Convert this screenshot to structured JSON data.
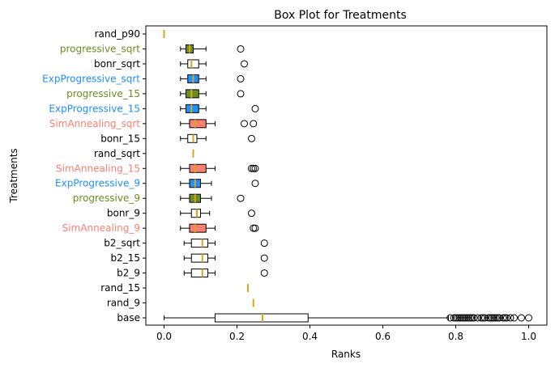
{
  "chart_data": {
    "type": "boxplot",
    "orientation": "horizontal",
    "title": "Box Plot for Treatments",
    "xlabel": "Ranks",
    "ylabel": "Treatments",
    "xlim": [
      -0.05,
      1.05
    ],
    "xticks": [
      0.0,
      0.2,
      0.4,
      0.6,
      0.8,
      1.0
    ],
    "xtick_labels": [
      "0.0",
      "0.2",
      "0.4",
      "0.6",
      "0.8",
      "1.0"
    ],
    "grid": false,
    "legend": "none",
    "colors": {
      "progressive": "#6b8e23",
      "exp": "#1e90ff",
      "sim": "#fa8072",
      "plain": "#ffffff",
      "default_text": "#000000",
      "median": "#daa520"
    },
    "treatments": [
      {
        "label": "rand_p90",
        "color_key": "plain",
        "q1": 0.0,
        "median": 0.0,
        "q3": 0.0,
        "whislo": 0.0,
        "whishi": 0.0,
        "fliers": []
      },
      {
        "label": "progressive_sqrt",
        "color_key": "progressive",
        "q1": 0.06,
        "median": 0.07,
        "q3": 0.08,
        "whislo": 0.045,
        "whishi": 0.115,
        "fliers": [
          0.21
        ]
      },
      {
        "label": "bonr_sqrt",
        "color_key": "plain",
        "q1": 0.065,
        "median": 0.075,
        "q3": 0.095,
        "whislo": 0.045,
        "whishi": 0.115,
        "fliers": [
          0.22
        ]
      },
      {
        "label": "ExpProgressive_sqrt",
        "color_key": "exp",
        "q1": 0.065,
        "median": 0.08,
        "q3": 0.095,
        "whislo": 0.045,
        "whishi": 0.115,
        "fliers": [
          0.21
        ]
      },
      {
        "label": "progressive_15",
        "color_key": "progressive",
        "q1": 0.06,
        "median": 0.075,
        "q3": 0.095,
        "whislo": 0.045,
        "whishi": 0.115,
        "fliers": [
          0.21
        ]
      },
      {
        "label": "ExpProgressive_15",
        "color_key": "exp",
        "q1": 0.06,
        "median": 0.075,
        "q3": 0.095,
        "whislo": 0.045,
        "whishi": 0.115,
        "fliers": [
          0.25
        ]
      },
      {
        "label": "SimAnnealing_sqrt",
        "color_key": "sim",
        "q1": 0.07,
        "median": 0.085,
        "q3": 0.115,
        "whislo": 0.045,
        "whishi": 0.14,
        "fliers": [
          0.22,
          0.245
        ]
      },
      {
        "label": "bonr_15",
        "color_key": "plain",
        "q1": 0.065,
        "median": 0.08,
        "q3": 0.09,
        "whislo": 0.045,
        "whishi": 0.115,
        "fliers": [
          0.24
        ]
      },
      {
        "label": "rand_sqrt",
        "color_key": "plain",
        "q1": 0.08,
        "median": 0.08,
        "q3": 0.08,
        "whislo": 0.08,
        "whishi": 0.08,
        "fliers": []
      },
      {
        "label": "SimAnnealing_15",
        "color_key": "sim",
        "q1": 0.07,
        "median": 0.085,
        "q3": 0.115,
        "whislo": 0.045,
        "whishi": 0.14,
        "fliers": [
          0.24,
          0.245,
          0.25
        ]
      },
      {
        "label": "ExpProgressive_9",
        "color_key": "exp",
        "q1": 0.07,
        "median": 0.085,
        "q3": 0.1,
        "whislo": 0.045,
        "whishi": 0.13,
        "fliers": [
          0.25
        ]
      },
      {
        "label": "progressive_9",
        "color_key": "progressive",
        "q1": 0.07,
        "median": 0.085,
        "q3": 0.1,
        "whislo": 0.045,
        "whishi": 0.13,
        "fliers": [
          0.21
        ]
      },
      {
        "label": "bonr_9",
        "color_key": "plain",
        "q1": 0.075,
        "median": 0.09,
        "q3": 0.1,
        "whislo": 0.045,
        "whishi": 0.125,
        "fliers": [
          0.24
        ]
      },
      {
        "label": "SimAnnealing_9",
        "color_key": "sim",
        "q1": 0.07,
        "median": 0.085,
        "q3": 0.115,
        "whislo": 0.045,
        "whishi": 0.14,
        "fliers": [
          0.245,
          0.25
        ]
      },
      {
        "label": "b2_sqrt",
        "color_key": "plain",
        "q1": 0.075,
        "median": 0.105,
        "q3": 0.12,
        "whislo": 0.055,
        "whishi": 0.14,
        "fliers": [
          0.275
        ]
      },
      {
        "label": "b2_15",
        "color_key": "plain",
        "q1": 0.075,
        "median": 0.105,
        "q3": 0.12,
        "whislo": 0.055,
        "whishi": 0.14,
        "fliers": [
          0.275
        ]
      },
      {
        "label": "b2_9",
        "color_key": "plain",
        "q1": 0.075,
        "median": 0.105,
        "q3": 0.12,
        "whislo": 0.055,
        "whishi": 0.14,
        "fliers": [
          0.275
        ]
      },
      {
        "label": "rand_15",
        "color_key": "plain",
        "q1": 0.23,
        "median": 0.23,
        "q3": 0.23,
        "whislo": 0.23,
        "whishi": 0.23,
        "fliers": []
      },
      {
        "label": "rand_9",
        "color_key": "plain",
        "q1": 0.245,
        "median": 0.245,
        "q3": 0.245,
        "whislo": 0.245,
        "whishi": 0.245,
        "fliers": []
      },
      {
        "label": "base",
        "color_key": "plain",
        "q1": 0.14,
        "median": 0.27,
        "q3": 0.395,
        "whislo": 0.0,
        "whishi": 0.78,
        "fliers": [
          0.785,
          0.795,
          0.8,
          0.805,
          0.81,
          0.815,
          0.82,
          0.825,
          0.83,
          0.835,
          0.84,
          0.845,
          0.85,
          0.86,
          0.87,
          0.875,
          0.88,
          0.89,
          0.895,
          0.9,
          0.905,
          0.91,
          0.915,
          0.92,
          0.93,
          0.935,
          0.94,
          0.95,
          0.96,
          0.98,
          1.0
        ]
      }
    ]
  }
}
